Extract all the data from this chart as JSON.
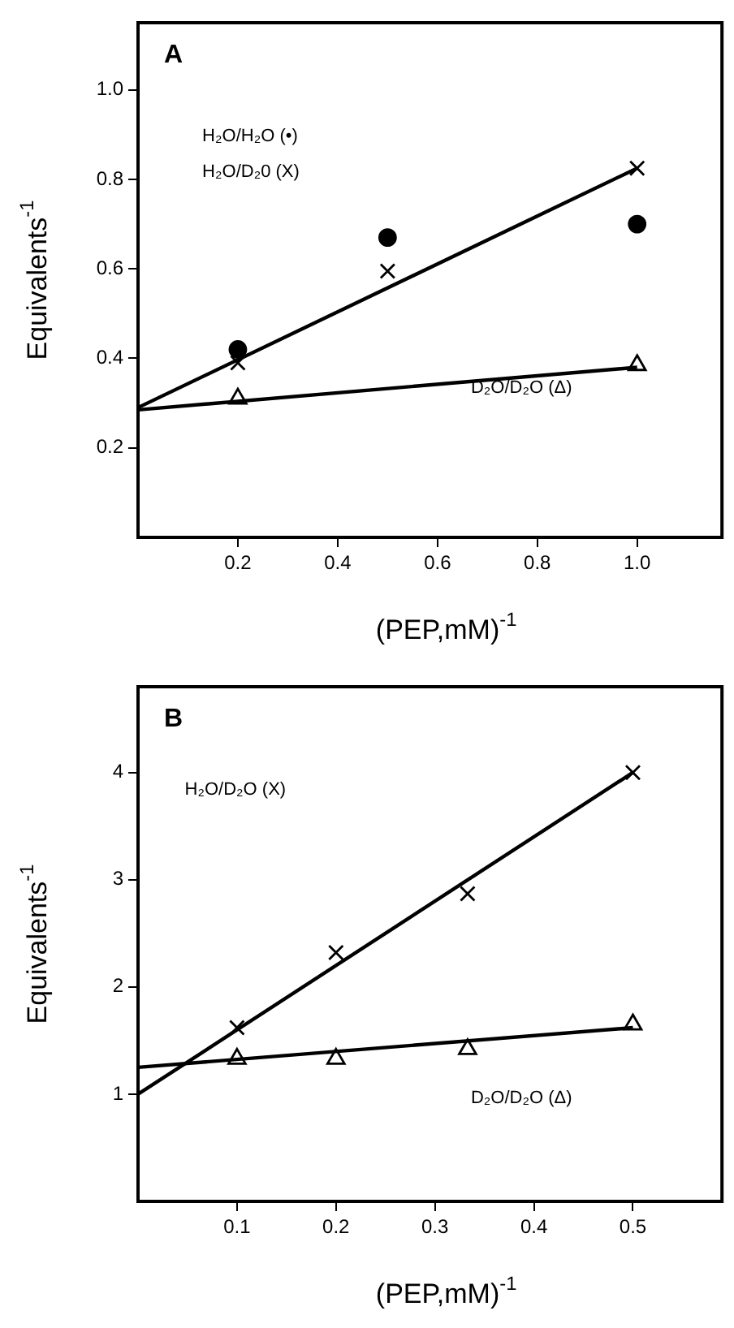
{
  "chart_data": [
    {
      "type": "scatter",
      "title": "A",
      "xlabel": "(PEP,mM)$^{-1}$",
      "ylabel": "Equivalents$^{-1}$",
      "xlim": [
        0,
        1.17
      ],
      "ylim": [
        0,
        1.15
      ],
      "xticks": [
        0.2,
        0.4,
        0.6,
        0.8,
        {
          "value": 1,
          "label": "1.0"
        }
      ],
      "yticks": [
        0.2,
        0.4,
        0.6,
        0.8,
        {
          "value": 1,
          "label": "1.0"
        }
      ],
      "grid": false,
      "legend": false,
      "annotations": [
        "H₂O/H₂O (•)",
        "H₂O/D₂0 (X)",
        "D₂O/D₂O (Δ)"
      ],
      "series": [
        {
          "type": "scatter",
          "marker": "circle",
          "color": "#000000",
          "x": [
            0.2,
            0.5,
            1.0
          ],
          "values": [
            0.42,
            0.67,
            0.7
          ]
        },
        {
          "type": "scatter",
          "marker": "cross",
          "color": "#000000",
          "x": [
            0.2,
            0.5,
            1.0
          ],
          "values": [
            0.39,
            0.595,
            0.825
          ]
        },
        {
          "type": "scatter",
          "marker": "triangle",
          "color": "#000000",
          "x": [
            0.2,
            1.0
          ],
          "values": [
            0.31,
            0.385
          ]
        },
        {
          "type": "line",
          "marker": "none",
          "color": "#000000",
          "x": [
            0,
            1.0
          ],
          "values": [
            0.29,
            0.825
          ]
        },
        {
          "type": "line",
          "marker": "none",
          "color": "#000000",
          "x": [
            0,
            1.0
          ],
          "values": [
            0.285,
            0.38
          ]
        }
      ]
    },
    {
      "type": "scatter",
      "title": "B",
      "xlabel": "(PEP,mM)$^{-1}$",
      "ylabel": "Equivalents$^{-1}$",
      "xlim": [
        0,
        0.59
      ],
      "ylim": [
        0,
        4.8
      ],
      "xticks": [
        0.1,
        0.2,
        0.3,
        0.4,
        0.5
      ],
      "yticks": [
        1,
        2,
        3,
        4
      ],
      "grid": false,
      "legend": false,
      "annotations": [
        "H₂O/D₂O (X)",
        "D₂O/D₂O (Δ)"
      ],
      "series": [
        {
          "type": "scatter",
          "marker": "cross",
          "color": "#000000",
          "x": [
            0.1,
            0.2,
            0.333,
            0.5
          ],
          "values": [
            1.62,
            2.32,
            2.87,
            4.0
          ]
        },
        {
          "type": "scatter",
          "marker": "triangle",
          "color": "#000000",
          "x": [
            0.1,
            0.2,
            0.333,
            0.5
          ],
          "values": [
            1.33,
            1.33,
            1.42,
            1.65
          ]
        },
        {
          "type": "line",
          "marker": "none",
          "color": "#000000",
          "x": [
            0,
            0.5
          ],
          "values": [
            1.0,
            4.0
          ]
        },
        {
          "type": "line",
          "marker": "none",
          "color": "#000000",
          "x": [
            0,
            0.5
          ],
          "values": [
            1.25,
            1.62
          ]
        }
      ]
    }
  ]
}
